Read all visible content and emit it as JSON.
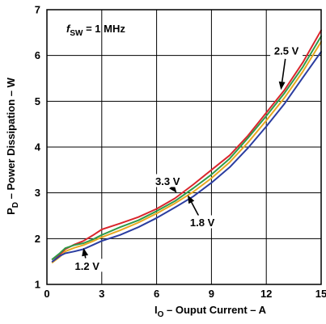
{
  "chart_data": {
    "type": "line",
    "xlabel": {
      "main": "I",
      "sub": "O",
      "rest": " – Ouput Current  – A"
    },
    "ylabel": {
      "main": "P",
      "sub": "D",
      "rest": " – Power Dissipation – W"
    },
    "annotation": {
      "main": "f",
      "sub": "SW",
      "rest": " = 1 MHz"
    },
    "xlim": [
      0,
      15
    ],
    "ylim": [
      1,
      7
    ],
    "xticks": [
      0,
      3,
      6,
      9,
      12,
      15
    ],
    "yticks": [
      1,
      2,
      3,
      4,
      5,
      6,
      7
    ],
    "grid": true,
    "series": [
      {
        "name": "2.5 V",
        "color": "#d9262c",
        "x": [
          0.3,
          0.7,
          1.0,
          1.5,
          2.0,
          2.5,
          3.0,
          4.0,
          5.0,
          6.0,
          7.0,
          8.0,
          9.0,
          10.0,
          11.0,
          12.0,
          13.0,
          14.0,
          15.0
        ],
        "y": [
          1.55,
          1.65,
          1.77,
          1.87,
          1.95,
          2.07,
          2.2,
          2.33,
          2.47,
          2.65,
          2.88,
          3.18,
          3.5,
          3.82,
          4.25,
          4.75,
          5.25,
          5.85,
          6.55
        ]
      },
      {
        "name": "",
        "color": "#2e9a48",
        "x": [
          0.3,
          0.7,
          1.0,
          1.5,
          2.0,
          2.5,
          3.0,
          4.0,
          5.0,
          6.0,
          7.0,
          8.0,
          9.0,
          10.0,
          11.0,
          12.0,
          13.0,
          14.0,
          15.0
        ],
        "y": [
          1.55,
          1.68,
          1.79,
          1.86,
          1.9,
          1.98,
          2.08,
          2.25,
          2.4,
          2.6,
          2.82,
          3.1,
          3.4,
          3.75,
          4.2,
          4.68,
          5.18,
          5.75,
          6.42
        ]
      },
      {
        "name": "",
        "color": "#e8a820",
        "x": [
          0.3,
          0.7,
          1.0,
          1.5,
          2.0,
          2.5,
          3.0,
          4.0,
          5.0,
          6.0,
          7.0,
          8.0,
          9.0,
          10.0,
          11.0,
          12.0,
          13.0,
          14.0,
          15.0
        ],
        "y": [
          1.48,
          1.6,
          1.72,
          1.8,
          1.86,
          1.94,
          2.03,
          2.18,
          2.35,
          2.55,
          2.77,
          3.02,
          3.32,
          3.67,
          4.1,
          4.58,
          5.08,
          5.65,
          6.3
        ]
      },
      {
        "name": "1.2 V",
        "color": "#2b3da0",
        "x": [
          0.3,
          0.7,
          1.0,
          1.5,
          2.0,
          2.5,
          3.0,
          4.0,
          5.0,
          6.0,
          7.0,
          8.0,
          9.0,
          10.0,
          11.0,
          12.0,
          13.0,
          14.0,
          15.0
        ],
        "y": [
          1.5,
          1.62,
          1.68,
          1.72,
          1.77,
          1.86,
          1.95,
          2.08,
          2.25,
          2.45,
          2.68,
          2.92,
          3.22,
          3.56,
          3.98,
          4.45,
          4.95,
          5.52,
          6.08
        ]
      }
    ],
    "callouts": [
      {
        "label": "2.5 V",
        "text_x": 13.1,
        "text_y": 6.1,
        "tip_x": 12.8,
        "tip_y": 5.25
      },
      {
        "label": "3.3 V",
        "text_x": 6.6,
        "text_y": 3.25,
        "tip_x": 7.1,
        "tip_y": 3.0
      },
      {
        "label": "1.8 V",
        "text_x": 8.5,
        "text_y": 2.35,
        "tip_x": 7.7,
        "tip_y": 2.95
      },
      {
        "label": "1.2 V",
        "text_x": 2.2,
        "text_y": 1.4,
        "tip_x": 2.0,
        "tip_y": 1.8
      }
    ]
  }
}
